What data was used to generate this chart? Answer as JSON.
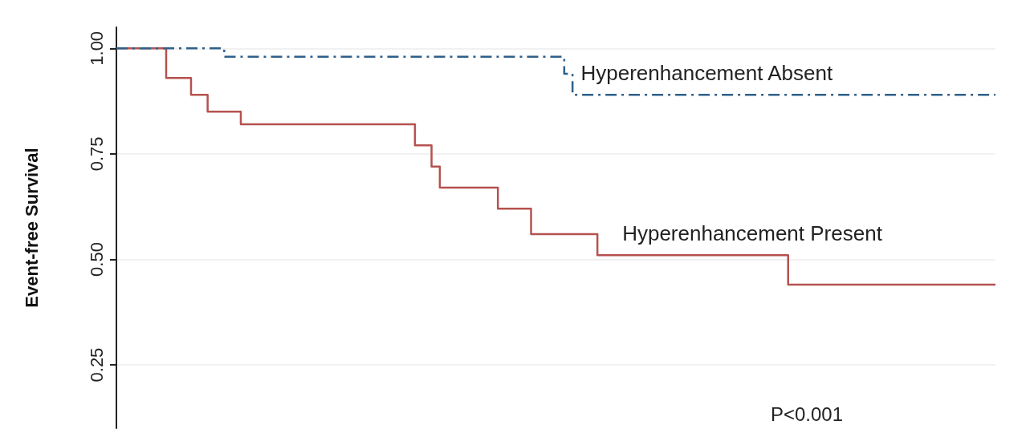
{
  "chart_data": {
    "type": "step",
    "ylabel": "Event-free Survival",
    "categories": [
      null,
      null,
      null,
      null,
      null,
      null,
      null,
      null,
      null,
      null,
      null,
      null,
      null,
      null,
      null,
      null,
      null,
      null,
      null,
      null,
      null,
      null,
      null,
      null,
      null,
      null,
      null,
      null,
      null,
      null,
      null,
      null,
      null,
      null,
      null,
      null,
      null,
      null,
      null,
      null,
      null,
      null,
      null,
      null,
      null,
      null,
      null,
      null,
      null,
      null,
      null,
      null,
      null,
      null,
      null,
      null,
      null,
      null,
      null,
      null,
      null,
      null,
      null,
      null,
      null,
      null,
      null,
      null,
      null,
      null,
      null,
      null,
      null,
      null,
      null,
      null,
      null,
      null,
      null,
      null,
      null,
      null,
      null,
      null,
      null,
      null,
      null,
      null,
      null,
      null,
      null,
      null,
      null,
      null,
      null,
      null,
      null,
      null,
      null,
      null,
      null,
      null,
      null,
      null,
      null,
      null,
      null
    ],
    "series": [
      {
        "name": "Hyperenhancement Absent",
        "color": "#2f5f8a",
        "line_style": "dashed",
        "values": [
          1,
          1,
          1,
          1,
          1,
          1,
          1,
          1,
          1,
          1,
          1,
          1,
          1,
          0.98,
          0.98,
          0.98,
          0.98,
          0.98,
          0.98,
          0.98,
          0.98,
          0.98,
          0.98,
          0.98,
          0.98,
          0.98,
          0.98,
          0.98,
          0.98,
          0.98,
          0.98,
          0.98,
          0.98,
          0.98,
          0.98,
          0.98,
          0.98,
          0.98,
          0.98,
          0.98,
          0.98,
          0.98,
          0.98,
          0.98,
          0.98,
          0.98,
          0.98,
          0.98,
          0.98,
          0.98,
          0.98,
          0.98,
          0.98,
          0.98,
          0.94,
          0.89,
          0.89,
          0.89,
          0.89,
          0.89,
          0.89,
          0.89,
          0.89,
          0.89,
          0.89,
          0.89,
          0.89,
          0.89,
          0.89,
          0.89,
          0.89,
          0.89,
          0.89,
          0.89,
          0.89,
          0.89,
          0.89,
          0.89,
          0.89,
          0.89,
          0.89,
          0.89,
          0.89,
          0.89,
          0.89,
          0.89,
          0.89,
          0.89,
          0.89,
          0.89,
          0.89,
          0.89,
          0.89,
          0.89,
          0.89,
          0.89,
          0.89,
          0.89,
          0.89,
          0.89,
          0.89,
          0.89,
          0.89,
          0.89,
          0.89,
          0.89,
          0.89
        ]
      },
      {
        "name": "Hyperenhancement Present",
        "color": "#b5524f",
        "line_style": "solid",
        "values": [
          1,
          1,
          1,
          1,
          1,
          1,
          0.93,
          0.93,
          0.93,
          0.89,
          0.89,
          0.85,
          0.85,
          0.85,
          0.85,
          0.82,
          0.82,
          0.82,
          0.82,
          0.82,
          0.82,
          0.82,
          0.82,
          0.82,
          0.82,
          0.82,
          0.82,
          0.82,
          0.82,
          0.82,
          0.82,
          0.82,
          0.82,
          0.82,
          0.82,
          0.82,
          0.77,
          0.77,
          0.72,
          0.67,
          0.67,
          0.67,
          0.67,
          0.67,
          0.67,
          0.67,
          0.62,
          0.62,
          0.62,
          0.62,
          0.56,
          0.56,
          0.56,
          0.56,
          0.56,
          0.56,
          0.56,
          0.56,
          0.51,
          0.51,
          0.51,
          0.51,
          0.51,
          0.51,
          0.51,
          0.51,
          0.51,
          0.51,
          0.51,
          0.51,
          0.51,
          0.51,
          0.51,
          0.51,
          0.51,
          0.51,
          0.51,
          0.51,
          0.51,
          0.51,
          0.51,
          0.44,
          0.44,
          0.44,
          0.44,
          0.44,
          0.44,
          0.44,
          0.44,
          0.44,
          0.44,
          0.44,
          0.44,
          0.44,
          0.44,
          0.44,
          0.44,
          0.44,
          0.44,
          0.44,
          0.44,
          0.44,
          0.44,
          0.44,
          0.44,
          0.44,
          0.44
        ]
      }
    ],
    "ylim": [
      0.1,
      1.05
    ],
    "yticks": [
      {
        "value": 0.25,
        "label": "0.25"
      },
      {
        "value": 0.5,
        "label": "0.50"
      },
      {
        "value": 0.75,
        "label": "0.75"
      },
      {
        "value": 1,
        "label": "1.00"
      }
    ],
    "grid": "y",
    "legend": false,
    "tick_labels": "y",
    "annotations": [
      "P<0.001"
    ]
  }
}
